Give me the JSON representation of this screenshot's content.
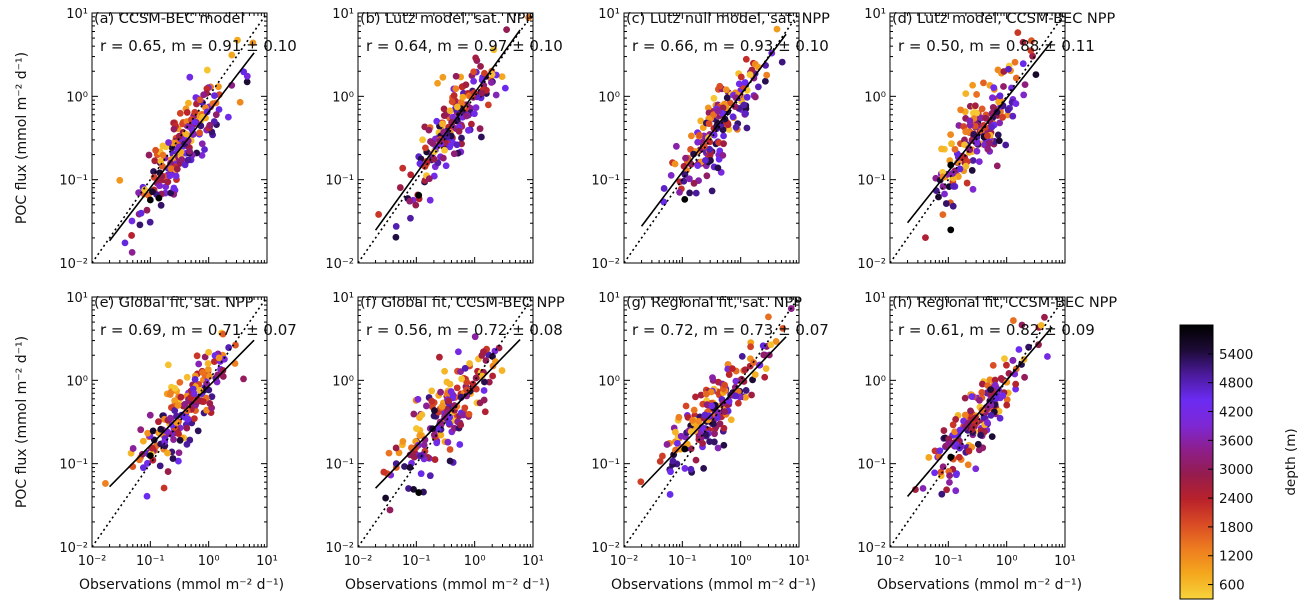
{
  "chart_data": {
    "type": "scatter",
    "xlabel": "Observations (mmol m⁻² d⁻¹)",
    "ylabel": "POC flux (mmol m⁻² d⁻¹)",
    "xscale": "log",
    "yscale": "log",
    "xlim": [
      0.01,
      10
    ],
    "ylim": [
      0.01,
      10
    ],
    "tick_values": [
      0.01,
      0.1,
      1,
      10
    ],
    "tick_labels": [
      "10⁻²",
      "10⁻¹",
      "10⁰",
      "10¹"
    ],
    "grid": false,
    "reference_line": "1:1 (dotted)",
    "fit_line": "solid",
    "colorbar": {
      "label": "depth (m)",
      "range": [
        300,
        6000
      ],
      "ticks": [
        600,
        1200,
        1800,
        2400,
        3000,
        3600,
        4200,
        4800,
        5400
      ],
      "colormap": [
        "#f7d33c",
        "#f4a81d",
        "#ee7d20",
        "#d94b24",
        "#b9222b",
        "#951c4e",
        "#8d1e8c",
        "#7d28d6",
        "#6b2bf2",
        "#4b1a9c",
        "#1d0b36",
        "#000000"
      ]
    },
    "panels": [
      {
        "title": "(a) CCSM-BEC model",
        "stat": "r = 0.65, m = 0.91 ± 0.10",
        "r": 0.65,
        "m": 0.91,
        "m_err": 0.1,
        "fit": {
          "slope": 0.91,
          "y_at_1": 0.65
        }
      },
      {
        "title": "(b) Lutz model, sat. NPP",
        "stat": "r = 0.64, m = 0.97 ± 0.10",
        "r": 0.64,
        "m": 0.97,
        "m_err": 0.1,
        "fit": {
          "slope": 0.97,
          "y_at_1": 1.1
        }
      },
      {
        "title": "(c) Lutz null model, sat. NPP",
        "stat": "r = 0.66, m = 0.93 ± 0.10",
        "r": 0.66,
        "m": 0.93,
        "m_err": 0.1,
        "fit": {
          "slope": 0.93,
          "y_at_1": 1.05
        }
      },
      {
        "title": "(d) Lutz model, CCSM-BEC NPP",
        "stat": "r = 0.50, m = 0.88 ± 0.11",
        "r": 0.5,
        "m": 0.88,
        "m_err": 0.11,
        "fit": {
          "slope": 0.88,
          "y_at_1": 0.95
        }
      },
      {
        "title": "(e) Global fit, sat. NPP",
        "stat": "r = 0.69, m = 0.71 ± 0.07",
        "r": 0.69,
        "m": 0.71,
        "m_err": 0.07,
        "fit": {
          "slope": 0.71,
          "y_at_1": 0.85
        }
      },
      {
        "title": "(f) Global fit, CCSM-BEC NPP",
        "stat": "r = 0.56, m = 0.72 ± 0.08",
        "r": 0.56,
        "m": 0.72,
        "m_err": 0.08,
        "fit": {
          "slope": 0.72,
          "y_at_1": 0.85
        }
      },
      {
        "title": "(g) Regional fit, sat. NPP",
        "stat": "r = 0.72, m = 0.73 ± 0.07",
        "r": 0.72,
        "m": 0.73,
        "m_err": 0.07,
        "fit": {
          "slope": 0.73,
          "y_at_1": 0.9
        }
      },
      {
        "title": "(h) Regional fit, CCSM-BEC NPP",
        "stat": "r = 0.61, m = 0.82 ± 0.09",
        "r": 0.61,
        "m": 0.82,
        "m_err": 0.09,
        "fit": {
          "slope": 0.82,
          "y_at_1": 1.0
        }
      }
    ],
    "scatter_points": {
      "count_per_panel": 190,
      "x_log_mean": -0.45,
      "x_log_sd": 0.42,
      "depth_range": [
        400,
        5600
      ],
      "outlier_black_points": [
        {
          "panel": 0,
          "x": 0.1,
          "y": 0.057
        },
        {
          "panel": 0,
          "x": 0.14,
          "y": 0.06
        },
        {
          "panel": 1,
          "x": 0.11,
          "y": 0.065
        },
        {
          "panel": 2,
          "x": 0.11,
          "y": 0.058
        },
        {
          "panel": 3,
          "x": 0.11,
          "y": 0.15
        },
        {
          "panel": 3,
          "x": 0.11,
          "y": 0.025
        },
        {
          "panel": 4,
          "x": 0.1,
          "y": 0.125
        },
        {
          "panel": 5,
          "x": 0.11,
          "y": 0.045
        },
        {
          "panel": 6,
          "x": 0.11,
          "y": 0.15
        },
        {
          "panel": 7,
          "x": 0.11,
          "y": 0.12
        }
      ]
    }
  }
}
